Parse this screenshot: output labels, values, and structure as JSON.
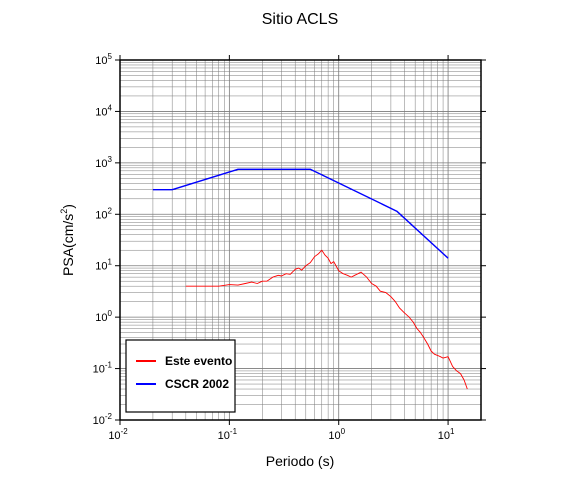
{
  "chart_data": {
    "type": "line",
    "title": "Sitio ACLS",
    "xlabel": "Periodo (s)",
    "ylabel_parts": {
      "base": "PSA(cm/s",
      "sup": "2",
      "close": ")"
    },
    "x_scale": "log",
    "y_scale": "log",
    "xlim": [
      0.01,
      20
    ],
    "ylim": [
      0.01,
      100000
    ],
    "grid": true,
    "legend_placement": "bottom-left",
    "x_ticks": [
      {
        "base": "10",
        "exp": "-2",
        "value": 0.01
      },
      {
        "base": "10",
        "exp": "-1",
        "value": 0.1
      },
      {
        "base": "10",
        "exp": "0",
        "value": 1
      },
      {
        "base": "10",
        "exp": "1",
        "value": 10
      }
    ],
    "y_ticks": [
      {
        "base": "10",
        "exp": "-2",
        "value": 0.01
      },
      {
        "base": "10",
        "exp": "-1",
        "value": 0.1
      },
      {
        "base": "10",
        "exp": "0",
        "value": 1
      },
      {
        "base": "10",
        "exp": "1",
        "value": 10
      },
      {
        "base": "10",
        "exp": "2",
        "value": 100
      },
      {
        "base": "10",
        "exp": "3",
        "value": 1000
      },
      {
        "base": "10",
        "exp": "4",
        "value": 10000
      },
      {
        "base": "10",
        "exp": "5",
        "value": 100000
      }
    ],
    "series": [
      {
        "name": "Este evento",
        "color": "#ff0000",
        "x": [
          0.04,
          0.06,
          0.08,
          0.1,
          0.12,
          0.14,
          0.16,
          0.18,
          0.2,
          0.22,
          0.25,
          0.28,
          0.3,
          0.33,
          0.36,
          0.4,
          0.43,
          0.46,
          0.5,
          0.55,
          0.6,
          0.65,
          0.7,
          0.75,
          0.8,
          0.85,
          0.9,
          1.0,
          1.1,
          1.2,
          1.3,
          1.4,
          1.5,
          1.6,
          1.8,
          2.0,
          2.2,
          2.4,
          2.7,
          3.0,
          3.3,
          3.6,
          4.0,
          4.4,
          4.8,
          5.2,
          5.6,
          6.0,
          6.5,
          7.0,
          7.5,
          8.0,
          8.5,
          9.0,
          10.0,
          11.0,
          12.0,
          13.0,
          14.0,
          15.0
        ],
        "y": [
          4.0,
          4.0,
          4.0,
          4.3,
          4.2,
          4.5,
          4.8,
          4.5,
          5.0,
          5.0,
          6.0,
          6.5,
          6.3,
          7.0,
          6.8,
          8.5,
          9.0,
          8.2,
          10.0,
          11.5,
          15.0,
          17.0,
          20.0,
          16.0,
          14.0,
          11.0,
          12.0,
          8.0,
          7.0,
          6.5,
          6.0,
          6.5,
          7.0,
          7.5,
          6.0,
          4.5,
          4.0,
          3.2,
          3.0,
          2.5,
          2.0,
          1.5,
          1.2,
          1.0,
          0.8,
          0.6,
          0.5,
          0.4,
          0.3,
          0.22,
          0.19,
          0.18,
          0.17,
          0.16,
          0.17,
          0.11,
          0.09,
          0.08,
          0.06,
          0.04
        ]
      },
      {
        "name": "CSCR 2002",
        "color": "#0000ff",
        "x": [
          0.02,
          0.03,
          0.12,
          0.55,
          3.4,
          10.0
        ],
        "y": [
          300,
          300,
          750,
          750,
          115,
          14
        ]
      }
    ]
  }
}
